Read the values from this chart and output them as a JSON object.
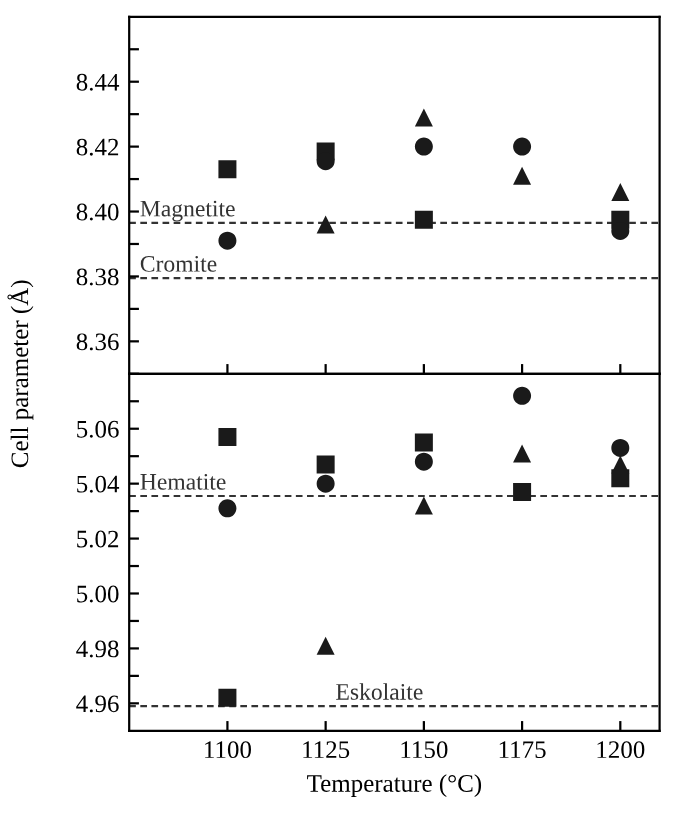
{
  "chart_data": [
    {
      "type": "scatter",
      "ylabel": "Cell parameter (Å)",
      "x": [
        1100,
        1125,
        1150,
        1175,
        1200
      ],
      "xlim": [
        1075,
        1210
      ],
      "xticks": [
        1100,
        1125,
        1150,
        1175,
        1200
      ],
      "tick_labels": "y",
      "ylim": [
        8.35,
        8.46
      ],
      "yticks": [
        {
          "value": 8.35,
          "label": null
        },
        8.36,
        {
          "value": 8.37,
          "label": null
        },
        8.38,
        {
          "value": 8.39,
          "label": null
        },
        "8.40",
        {
          "value": 8.41,
          "label": null
        },
        8.42,
        {
          "value": 8.43,
          "label": null
        },
        8.44,
        {
          "value": 8.45,
          "label": null
        }
      ],
      "series": [
        {
          "color": "#1a1a1a",
          "marker": "square",
          "values": [
            8.413,
            8.4185,
            8.3975,
            null,
            8.3975
          ]
        },
        {
          "color": "#1a1a1a",
          "marker": "circle",
          "values": [
            8.391,
            8.4155,
            8.42,
            8.42,
            8.394
          ]
        },
        {
          "color": "#1a1a1a",
          "marker": "triangle",
          "values": [
            null,
            8.396,
            8.429,
            8.411,
            8.406
          ]
        }
      ],
      "ref_lines": [
        {
          "axis": "y",
          "value": 8.3965,
          "label": "Magnetite",
          "line_style": "dashed",
          "color": "#333333"
        },
        {
          "axis": "y",
          "value": 8.3795,
          "label": "Cromite",
          "line_style": "dashed",
          "color": "#333333"
        }
      ]
    },
    {
      "type": "scatter",
      "xlabel": "Temperature (°C)",
      "x": [
        1100,
        1125,
        1150,
        1175,
        1200
      ],
      "xlim": [
        1075,
        1210
      ],
      "xticks": [
        1100,
        1125,
        1150,
        1175,
        1200
      ],
      "ylim": [
        4.95,
        5.08
      ],
      "yticks": [
        4.96,
        {
          "value": 4.97,
          "label": null
        },
        4.98,
        {
          "value": 4.99,
          "label": null
        },
        "5.00",
        {
          "value": 5.01,
          "label": null
        },
        5.02,
        {
          "value": 5.03,
          "label": null
        },
        5.04,
        {
          "value": 5.05,
          "label": null
        },
        5.06,
        {
          "value": 5.07,
          "label": null
        }
      ],
      "series": [
        {
          "color": "#1a1a1a",
          "marker": "square",
          "values": [
            5.057,
            5.047,
            5.055,
            5.037,
            5.042
          ]
        },
        {
          "color": "#1a1a1a",
          "marker": "square",
          "values": [
            4.962,
            null,
            null,
            null,
            null
          ]
        },
        {
          "color": "#1a1a1a",
          "marker": "circle",
          "values": [
            5.031,
            5.04,
            5.048,
            5.072,
            5.053
          ]
        },
        {
          "color": "#1a1a1a",
          "marker": "triangle",
          "values": [
            null,
            4.981,
            5.032,
            5.051,
            5.047
          ]
        }
      ],
      "ref_lines": [
        {
          "axis": "y",
          "value": 5.0355,
          "label": "Hematite",
          "line_style": "dashed",
          "color": "#333333"
        },
        {
          "axis": "y",
          "value": 4.959,
          "label": "Eskolaite",
          "line_style": "dashed",
          "color": "#333333"
        }
      ]
    }
  ]
}
